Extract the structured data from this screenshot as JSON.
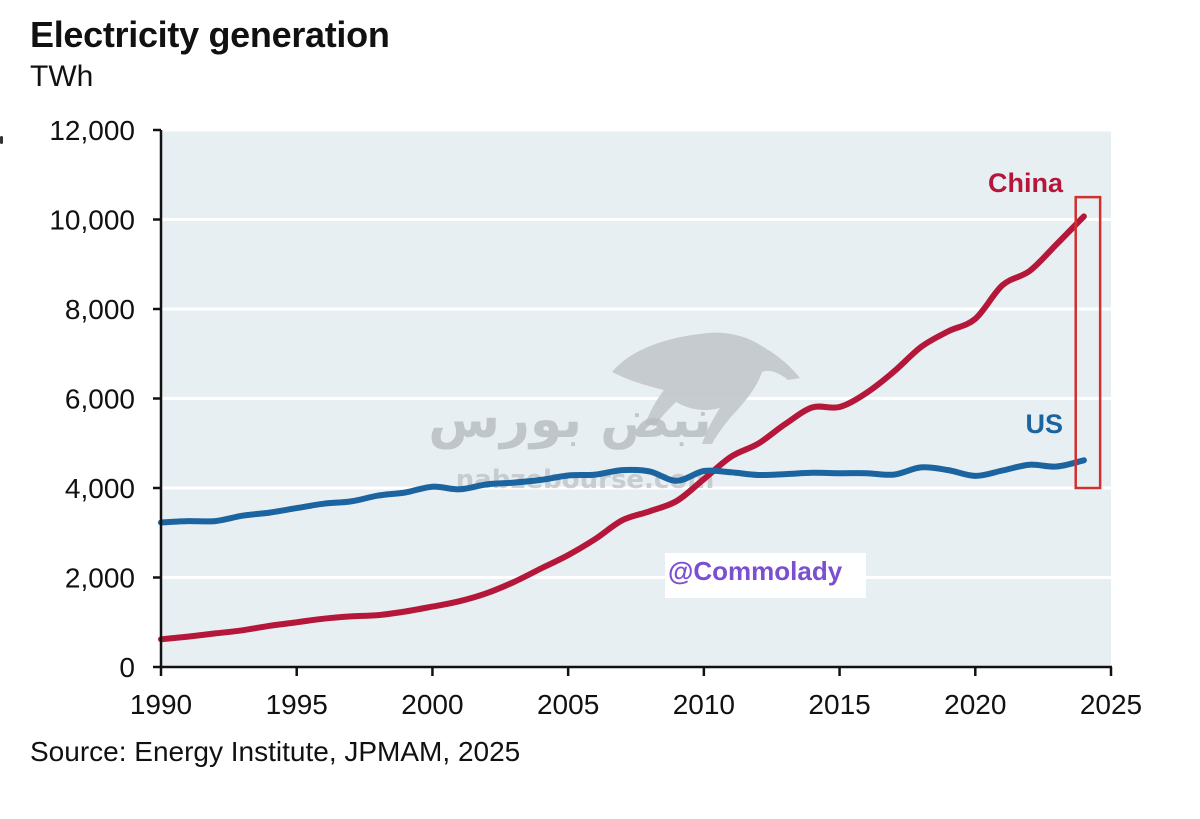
{
  "header": {
    "title": "Electricity generation",
    "unit": "TWh"
  },
  "footer": {
    "source": "Source: Energy Institute, JPMAM, 2025"
  },
  "watermark": {
    "arabic_text": "نبض بورس",
    "url_text": "nabzebourse.com",
    "icon": "bull-icon"
  },
  "credit": {
    "text": "@Commolady",
    "color": "#7a4fd0"
  },
  "highlight": {
    "description": "red box around latest year",
    "year_start": 2023.7,
    "year_end": 2024.6,
    "value_low": 4000,
    "value_high": 10500,
    "color": "#d0302f"
  },
  "chart_data": {
    "type": "line",
    "title": "Electricity generation",
    "subtitle": "TWh",
    "xlabel": "",
    "ylabel": "TWh",
    "xlim": [
      1990,
      2025
    ],
    "ylim": [
      0,
      12000
    ],
    "x_ticks": [
      1990,
      1995,
      2000,
      2005,
      2010,
      2015,
      2020,
      2025
    ],
    "x_tick_labels": [
      "1990",
      "1995",
      "2000",
      "2005",
      "2010",
      "2015",
      "2020",
      "2025"
    ],
    "y_ticks": [
      0,
      2000,
      4000,
      6000,
      8000,
      10000,
      12000
    ],
    "y_tick_labels": [
      "0",
      "2,000",
      "4,000",
      "6,000",
      "8,000",
      "10,000",
      "12,000"
    ],
    "grid": "horizontal",
    "background": "#e8eff3",
    "legend": "inline-labels",
    "x": [
      1990,
      1991,
      1992,
      1993,
      1994,
      1995,
      1996,
      1997,
      1998,
      1999,
      2000,
      2001,
      2002,
      2003,
      2004,
      2005,
      2006,
      2007,
      2008,
      2009,
      2010,
      2011,
      2012,
      2013,
      2014,
      2015,
      2016,
      2017,
      2018,
      2019,
      2020,
      2021,
      2022,
      2023,
      2024
    ],
    "series": [
      {
        "name": "China",
        "color": "#b5173a",
        "label_position": "top-right",
        "values": [
          620,
          680,
          750,
          820,
          920,
          1000,
          1080,
          1130,
          1160,
          1240,
          1350,
          1470,
          1650,
          1900,
          2200,
          2500,
          2860,
          3280,
          3480,
          3710,
          4200,
          4700,
          4990,
          5430,
          5800,
          5810,
          6130,
          6600,
          7150,
          7500,
          7780,
          8530,
          8850,
          9450,
          10070
        ]
      },
      {
        "name": "US",
        "color": "#1b64a0",
        "label_position": "right",
        "values": [
          3230,
          3260,
          3260,
          3380,
          3450,
          3550,
          3650,
          3700,
          3830,
          3900,
          4030,
          3970,
          4080,
          4120,
          4180,
          4280,
          4300,
          4400,
          4370,
          4160,
          4380,
          4350,
          4290,
          4310,
          4340,
          4330,
          4330,
          4300,
          4460,
          4400,
          4270,
          4390,
          4520,
          4480,
          4620
        ]
      }
    ],
    "source": "Source: Energy Institute, JPMAM, 2025"
  }
}
